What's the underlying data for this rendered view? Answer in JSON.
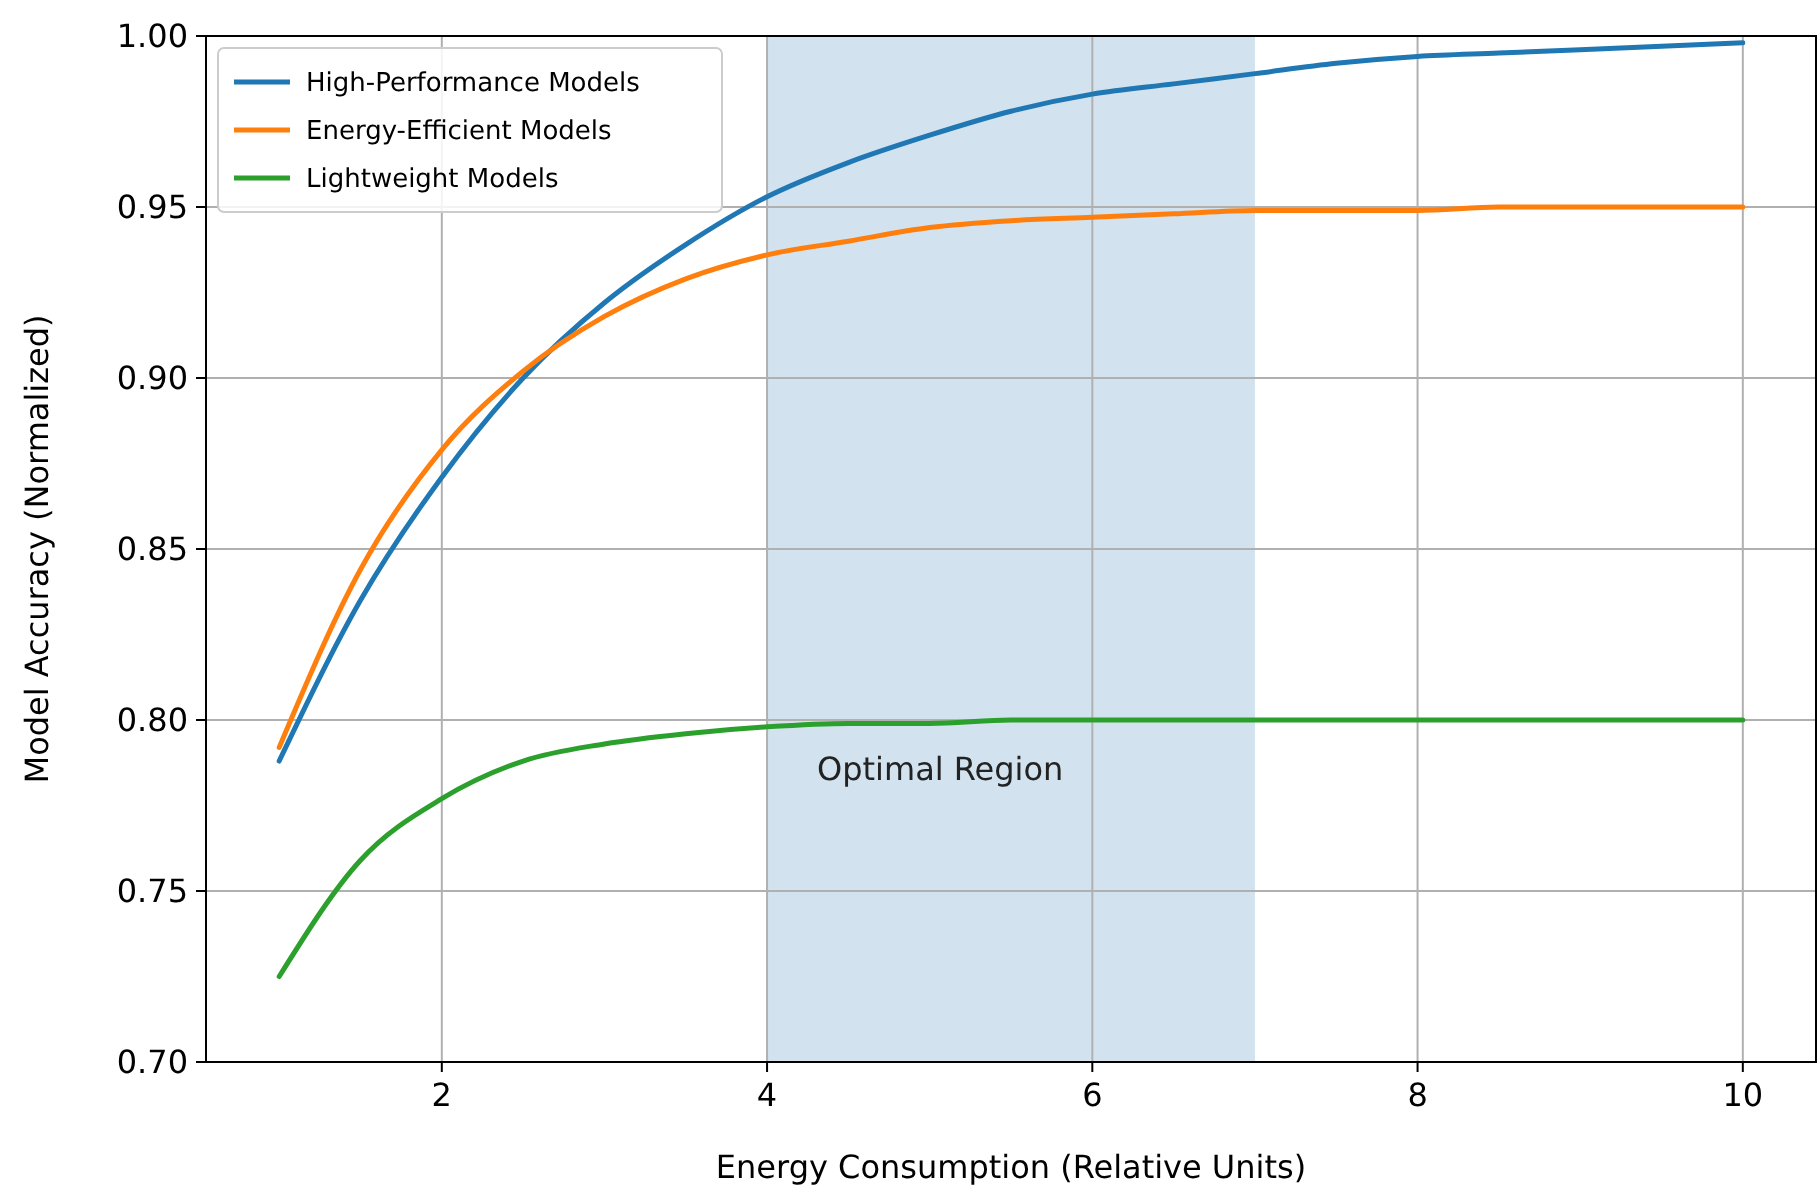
{
  "chart_data": {
    "type": "line",
    "xlabel": "Energy Consumption (Relative Units)",
    "ylabel": "Model Accuracy (Normalized)",
    "x": [
      1,
      1.5,
      2,
      2.5,
      3,
      3.5,
      4,
      4.5,
      5,
      5.5,
      6,
      6.5,
      7,
      7.5,
      8,
      8.5,
      9,
      9.5,
      10
    ],
    "series": [
      {
        "name": "High-Performance Models",
        "color": "#1f77b4",
        "values": [
          0.788,
          0.835,
          0.871,
          0.9,
          0.922,
          0.939,
          0.953,
          0.963,
          0.971,
          0.978,
          0.983,
          0.986,
          0.989,
          0.992,
          0.994,
          0.995,
          0.996,
          0.997,
          0.998
        ]
      },
      {
        "name": "Energy-Efficient Models",
        "color": "#ff7f0e",
        "values": [
          0.792,
          0.844,
          0.879,
          0.902,
          0.918,
          0.929,
          0.936,
          0.94,
          0.944,
          0.946,
          0.947,
          0.948,
          0.949,
          0.949,
          0.949,
          0.95,
          0.95,
          0.95,
          0.95
        ]
      },
      {
        "name": "Lightweight Models",
        "color": "#2ca02c",
        "values": [
          0.725,
          0.759,
          0.777,
          0.788,
          0.793,
          0.796,
          0.798,
          0.799,
          0.799,
          0.8,
          0.8,
          0.8,
          0.8,
          0.8,
          0.8,
          0.8,
          0.8,
          0.8,
          0.8
        ]
      }
    ],
    "xlim": [
      0.55,
      10.45
    ],
    "xticks": [
      2,
      4,
      6,
      8,
      10
    ],
    "ylim": [
      0.7,
      1.0
    ],
    "yticks": [
      {
        "value": 0.7,
        "label": "0.70"
      },
      {
        "value": 0.75,
        "label": "0.75"
      },
      {
        "value": 0.8,
        "label": "0.80"
      },
      {
        "value": 0.85,
        "label": "0.85"
      },
      {
        "value": 0.9,
        "label": "0.90"
      },
      {
        "value": 0.95,
        "label": "0.95"
      },
      {
        "value": 1.0,
        "label": "1.00"
      }
    ],
    "bands": [
      {
        "axis": "x",
        "from": 4,
        "to": 7,
        "label": "Optimal Region",
        "color": "#d2e3ef"
      }
    ],
    "grid": true,
    "legend": "top left",
    "line_style": "solid",
    "marker": "none"
  }
}
